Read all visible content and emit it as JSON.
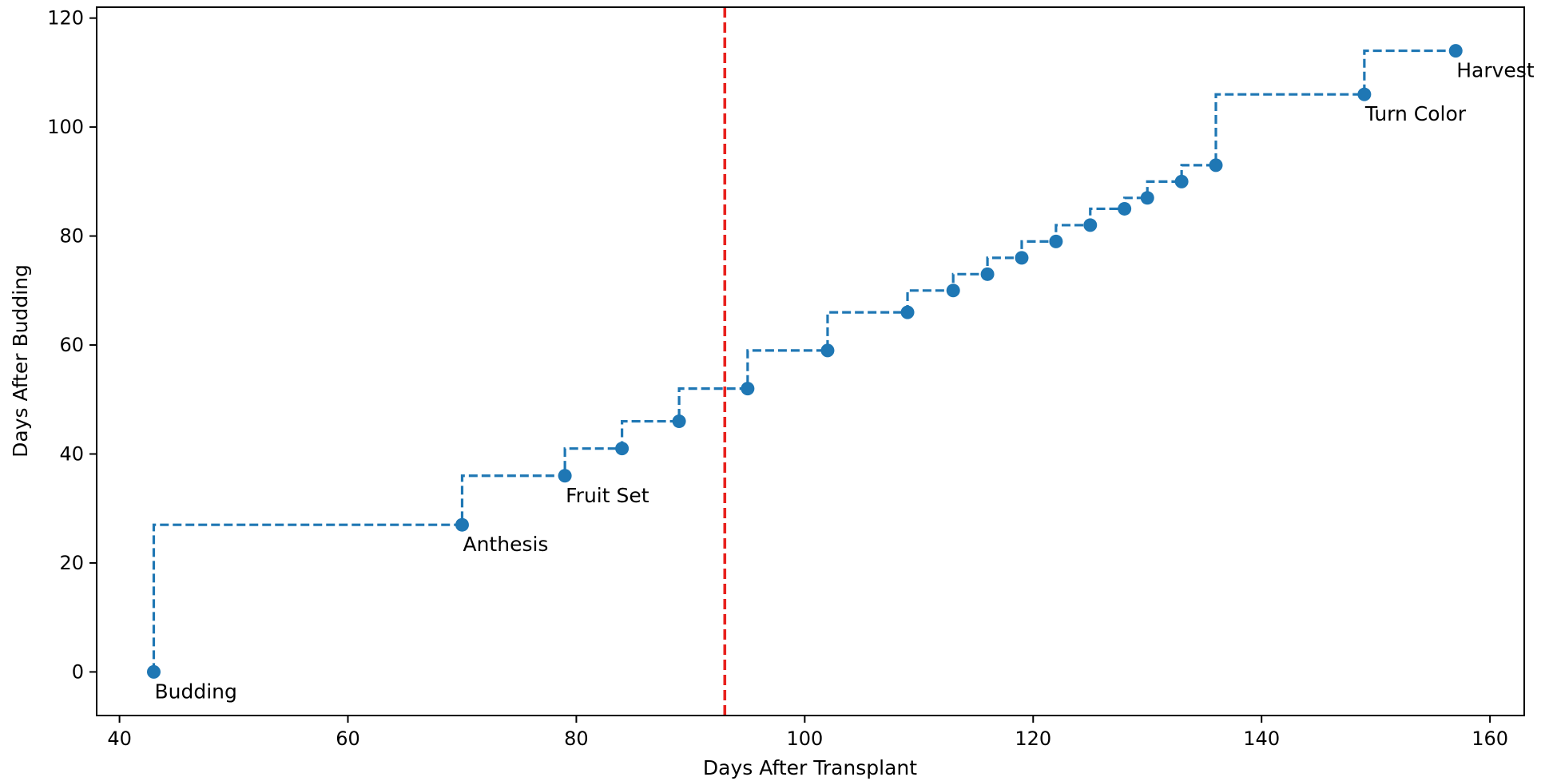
{
  "chart_data": {
    "type": "line",
    "step": "pre",
    "xlabel": "Days After Transplant",
    "ylabel": "Days After Budding",
    "xlim": [
      38,
      163
    ],
    "ylim": [
      -8,
      122
    ],
    "xticks": [
      40,
      60,
      80,
      100,
      120,
      140,
      160
    ],
    "yticks": [
      0,
      20,
      40,
      60,
      80,
      100,
      120
    ],
    "grid": false,
    "series": [
      {
        "line_color": "#1f77b4",
        "line_style": "dashed",
        "marker": "circle",
        "points": [
          {
            "x": 43,
            "y": 0
          },
          {
            "x": 70,
            "y": 27
          },
          {
            "x": 79,
            "y": 36
          },
          {
            "x": 84,
            "y": 41
          },
          {
            "x": 89,
            "y": 46
          },
          {
            "x": 95,
            "y": 52
          },
          {
            "x": 102,
            "y": 59
          },
          {
            "x": 109,
            "y": 66
          },
          {
            "x": 113,
            "y": 70
          },
          {
            "x": 116,
            "y": 73
          },
          {
            "x": 119,
            "y": 76
          },
          {
            "x": 122,
            "y": 79
          },
          {
            "x": 125,
            "y": 82
          },
          {
            "x": 128,
            "y": 85
          },
          {
            "x": 130,
            "y": 87
          },
          {
            "x": 133,
            "y": 90
          },
          {
            "x": 136,
            "y": 93
          },
          {
            "x": 149,
            "y": 106
          },
          {
            "x": 157,
            "y": 114
          }
        ]
      }
    ],
    "vline": {
      "x": 93,
      "color": "#e8211d",
      "style": "dashed"
    },
    "annotations": [
      {
        "text": "Budding",
        "x": 43,
        "y": 0
      },
      {
        "text": "Anthesis",
        "x": 70,
        "y": 27
      },
      {
        "text": "Fruit Set",
        "x": 79,
        "y": 36
      },
      {
        "text": "Turn Color",
        "x": 149,
        "y": 106
      },
      {
        "text": "Harvest",
        "x": 157,
        "y": 114
      }
    ]
  }
}
